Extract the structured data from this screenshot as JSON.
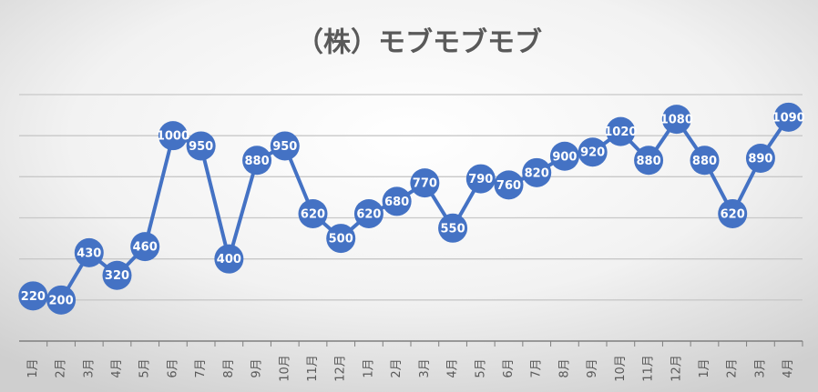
{
  "chart_data": {
    "type": "line",
    "title": "（株）モブモブモブ",
    "categories": [
      "1月",
      "2月",
      "3月",
      "4月",
      "5月",
      "6月",
      "7月",
      "8月",
      "9月",
      "10月",
      "11月",
      "12月",
      "1月",
      "2月",
      "3月",
      "4月",
      "5月",
      "6月",
      "7月",
      "8月",
      "9月",
      "10月",
      "11月",
      "12月",
      "1月",
      "2月",
      "3月",
      "4月"
    ],
    "values": [
      220,
      200,
      430,
      320,
      460,
      1000,
      950,
      400,
      880,
      950,
      620,
      500,
      620,
      680,
      770,
      550,
      790,
      760,
      820,
      900,
      920,
      1020,
      880,
      1080,
      880,
      620,
      890,
      1090
    ],
    "color": "#4472c4",
    "ylim": [
      0,
      1200
    ],
    "yticks": [
      0,
      200,
      400,
      600,
      800,
      1000,
      1200
    ],
    "grid": true
  }
}
